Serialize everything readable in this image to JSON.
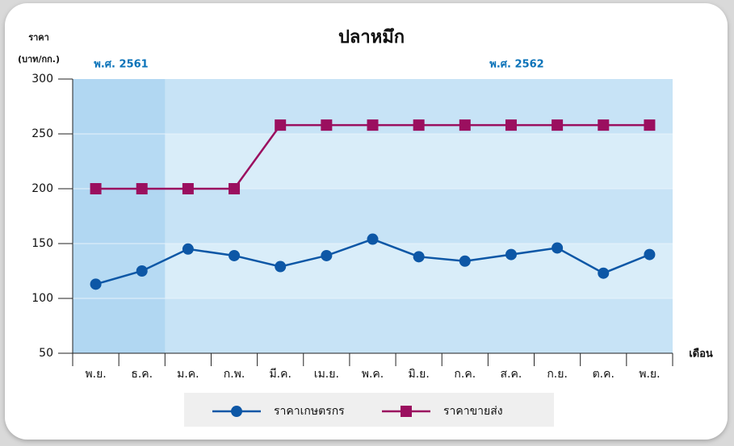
{
  "chart_data": {
    "type": "line",
    "title": "ปลาหมึก",
    "y_label": "ราคา",
    "y_unit": "(บาท/กก.)",
    "x_label": "เดือน",
    "period_labels": [
      "พ.ศ. 2561",
      "พ.ศ. 2562"
    ],
    "categories": [
      "พ.ย.",
      "ธ.ค.",
      "ม.ค.",
      "ก.พ.",
      "มี.ค.",
      "เม.ย.",
      "พ.ค.",
      "มิ.ย.",
      "ก.ค.",
      "ส.ค.",
      "ก.ย.",
      "ต.ค.",
      "พ.ย."
    ],
    "series": [
      {
        "name": "ราคาเกษตรกร",
        "color": "#0d57a6",
        "marker": "circle",
        "values": [
          113,
          125,
          145,
          139,
          129,
          139,
          154,
          138,
          134,
          140,
          146,
          123,
          140
        ]
      },
      {
        "name": "ราคาขายส่ง",
        "color": "#9b0f5f",
        "marker": "square",
        "values": [
          200,
          200,
          200,
          200,
          258,
          258,
          258,
          258,
          258,
          258,
          258,
          258,
          258
        ]
      }
    ],
    "ylim": [
      50,
      300
    ],
    "yticks": [
      50,
      100,
      150,
      200,
      250,
      300
    ],
    "grid": true
  }
}
